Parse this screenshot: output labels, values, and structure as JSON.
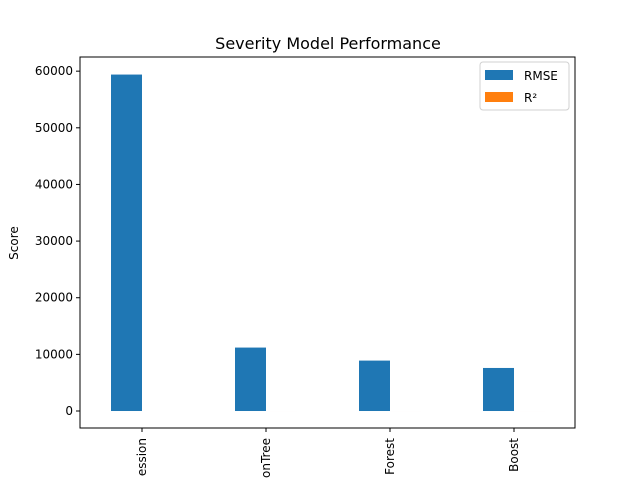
{
  "chart_data": {
    "type": "bar",
    "title": "Severity Model Performance",
    "xlabel": "",
    "ylabel": "Score",
    "ylim": [
      -3000,
      62500
    ],
    "yticks": [
      0,
      10000,
      20000,
      30000,
      40000,
      50000,
      60000
    ],
    "ytick_labels": [
      "0",
      "10000",
      "20000",
      "30000",
      "40000",
      "50000",
      "60000"
    ],
    "categories": [
      "ession",
      "onTree",
      "Forest",
      "Boost"
    ],
    "series": [
      {
        "name": "RMSE",
        "color": "#1f77b4",
        "values": [
          59400,
          11200,
          8900,
          7600
        ]
      },
      {
        "name": "R²",
        "color": "#ff7f0e",
        "values": [
          0.3,
          0.95,
          0.97,
          0.98
        ]
      }
    ],
    "legend": {
      "position": "top-right"
    },
    "grid": false
  }
}
